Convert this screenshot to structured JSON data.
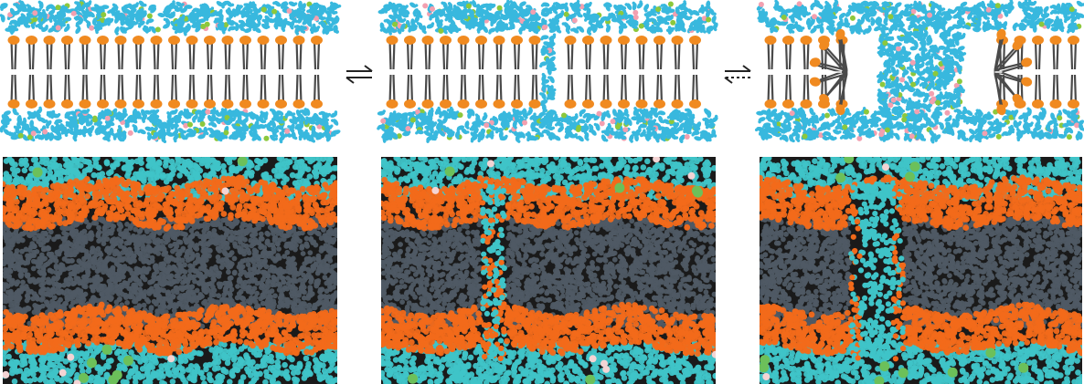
{
  "figure": {
    "stages": [
      {
        "id": "intact",
        "pore": "none"
      },
      {
        "id": "hydrophobic-pore",
        "pore": "hydrophobic"
      },
      {
        "id": "hydrophilic-pore",
        "pore": "hydrophilic"
      }
    ],
    "arrows": [
      {
        "id": "intact-to-hydrophobic",
        "style": "equilibrium-solid"
      },
      {
        "id": "hydrophobic-to-hydrophilic",
        "style": "equilibrium-dashed-reverse"
      }
    ],
    "colors": {
      "background": "#ffffff",
      "headgroup": "#f08a20",
      "tail": "#4a4a4a",
      "water": "#38b8de",
      "ion_green": "#8cc83c",
      "ion_pink": "#f2a0b0",
      "sim_background": "#1a1a1a",
      "sim_tail": "#4f5a64",
      "sim_head": "#f26a1a",
      "sim_water": "#3fc4c8",
      "sim_ion_green": "#6cc05a",
      "sim_ion_pink": "#f4d4d4"
    }
  }
}
